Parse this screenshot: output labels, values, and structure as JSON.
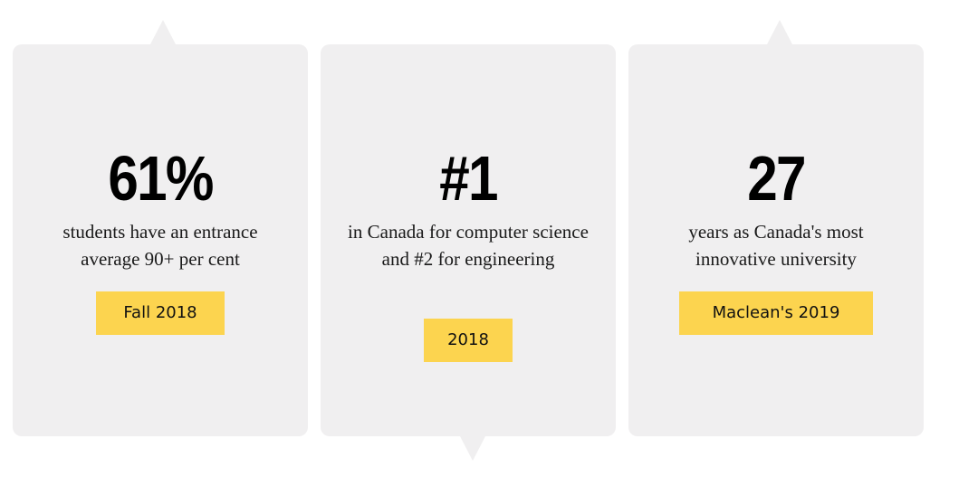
{
  "cards": [
    {
      "stat": "61%",
      "description": "students have an entrance average 90+ per cent",
      "badge": "Fall 2018"
    },
    {
      "stat": "#1",
      "description": "in Canada for computer science and #2 for engineering",
      "badge": "2018"
    },
    {
      "stat": "27",
      "description": "years as Canada's most innovative university",
      "badge": "Maclean's 2019"
    }
  ],
  "colors": {
    "card_background": "#f0eff0",
    "badge_background": "#fcd44f",
    "stat_text": "#000000"
  }
}
